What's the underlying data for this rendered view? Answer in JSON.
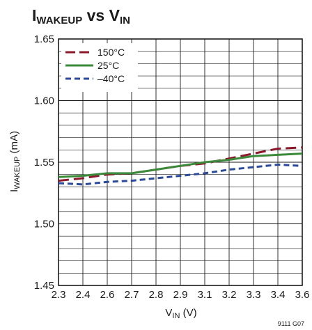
{
  "chart_data": {
    "type": "line",
    "title_main": "I",
    "title_main_sub": "WAKEUP",
    "title_vs": " vs ",
    "title_var": "V",
    "title_var_sub": "IN",
    "ylabel_main": "I",
    "ylabel_sub": "WAKEUP",
    "ylabel_unit": " (mA)",
    "xlabel_main": "V",
    "xlabel_sub": "IN",
    "xlabel_unit": " (V)",
    "figure_code": "9111 G07",
    "ylim": [
      1.45,
      1.65
    ],
    "yticks": [
      "1.45",
      "1.50",
      "1.55",
      "1.60",
      "1.65"
    ],
    "xticks": [
      "2.3",
      "2.4",
      "2.6",
      "2.7",
      "2.8",
      "2.9",
      "3.1",
      "3.2",
      "3.3",
      "3.4",
      "3.6"
    ],
    "grid": true,
    "legend_position": "top-left",
    "series": [
      {
        "name": "150°C",
        "color": "#8b1a2b",
        "dash": "long-dash",
        "values": [
          1.535,
          1.537,
          1.54,
          1.541,
          1.544,
          1.547,
          1.549,
          1.553,
          1.557,
          1.561,
          1.562
        ]
      },
      {
        "name": "25°C",
        "color": "#3a8a3a",
        "dash": "solid",
        "values": [
          1.538,
          1.539,
          1.541,
          1.541,
          1.544,
          1.547,
          1.55,
          1.552,
          1.555,
          1.556,
          1.557
        ]
      },
      {
        "name": "–40°C",
        "color": "#2b4a9a",
        "dash": "short-dash",
        "values": [
          1.533,
          1.532,
          1.534,
          1.535,
          1.537,
          1.539,
          1.541,
          1.544,
          1.546,
          1.548,
          1.547
        ]
      }
    ]
  }
}
